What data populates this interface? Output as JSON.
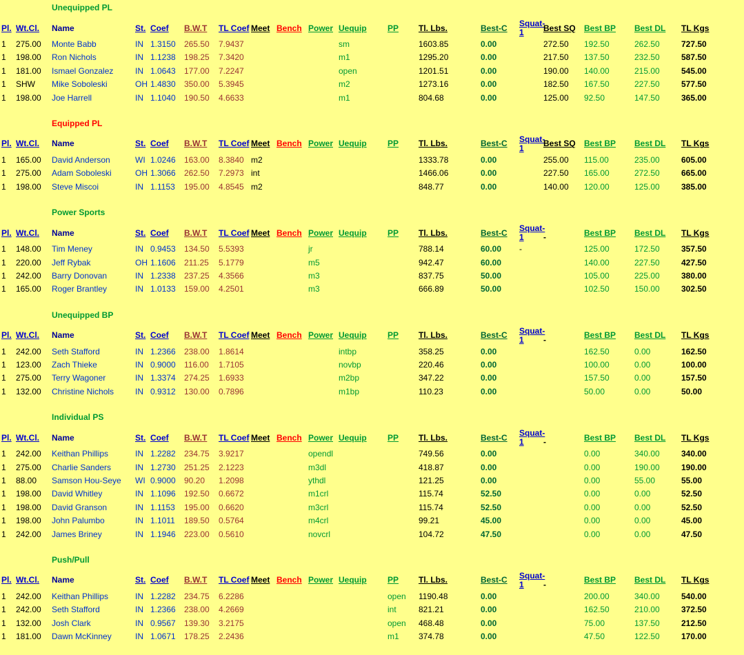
{
  "page": {
    "background": "#FFFF8C",
    "colors": {
      "link_blue": "#0000CC",
      "name_navy": "#000099",
      "maroon": "#993333",
      "red": "#FF0000",
      "green": "#009933",
      "dark_green": "#006633",
      "black": "#000000"
    }
  },
  "columns": [
    {
      "key": "pl",
      "label": "Pl.",
      "sortable": true
    },
    {
      "key": "wtcl",
      "label": "Wt.Cl.",
      "sortable": true
    },
    {
      "key": "name",
      "label": "Name",
      "sortable": false
    },
    {
      "key": "st",
      "label": "St.",
      "sortable": true
    },
    {
      "key": "coef",
      "label": "Coef",
      "sortable": true
    },
    {
      "key": "bwt",
      "label": "B.W.T",
      "sortable": true
    },
    {
      "key": "tlcoef",
      "label": "TL Coef",
      "sortable": true
    },
    {
      "key": "meet",
      "label": "Meet",
      "sortable": true
    },
    {
      "key": "bench",
      "label": "Bench",
      "sortable": true
    },
    {
      "key": "power",
      "label": "Power",
      "sortable": true
    },
    {
      "key": "uequip",
      "label": "Uequip",
      "sortable": true
    },
    {
      "key": "pp",
      "label": "PP",
      "sortable": true
    },
    {
      "key": "tllbs",
      "label": "Tl. Lbs.",
      "sortable": true
    },
    {
      "key": "bestc",
      "label": "Best-C",
      "sortable": true
    },
    {
      "key": "squat1",
      "label": "Squat-1",
      "sortable": true
    },
    {
      "key": "bestsq",
      "label": "Best SQ",
      "sortable": true
    },
    {
      "key": "bestbp",
      "label": "Best BP",
      "sortable": true
    },
    {
      "key": "bestdl",
      "label": "Best DL",
      "sortable": true
    },
    {
      "key": "tlkgs",
      "label": "TL Kgs",
      "sortable": true
    }
  ],
  "sections": [
    {
      "title": "Unequipped PL",
      "title_color": "#009933",
      "best_sq_header": "Best SQ",
      "rows": [
        [
          "1",
          "275.00",
          "Monte Babb",
          "IN",
          "1.3150",
          "265.50",
          "7.9437",
          "",
          "",
          "",
          "sm",
          "",
          "1603.85",
          "0.00",
          "",
          "272.50",
          "192.50",
          "262.50",
          "727.50"
        ],
        [
          "1",
          "198.00",
          "Ron Nichols",
          "IN",
          "1.1238",
          "198.25",
          "7.3420",
          "",
          "",
          "",
          "m1",
          "",
          "1295.20",
          "0.00",
          "",
          "217.50",
          "137.50",
          "232.50",
          "587.50"
        ],
        [
          "1",
          "181.00",
          "Ismael Gonzalez",
          "IN",
          "1.0643",
          "177.00",
          "7.2247",
          "",
          "",
          "",
          "open",
          "",
          "1201.51",
          "0.00",
          "",
          "190.00",
          "140.00",
          "215.00",
          "545.00"
        ],
        [
          "1",
          "SHW",
          "Mike Soboleski",
          "OH",
          "1.4830",
          "350.00",
          "5.3945",
          "",
          "",
          "",
          "m2",
          "",
          "1273.16",
          "0.00",
          "",
          "182.50",
          "167.50",
          "227.50",
          "577.50"
        ],
        [
          "1",
          "198.00",
          "Joe Harrell",
          "IN",
          "1.1040",
          "190.50",
          "4.6633",
          "",
          "",
          "",
          "m1",
          "",
          "804.68",
          "0.00",
          "",
          "125.00",
          "92.50",
          "147.50",
          "365.00"
        ]
      ]
    },
    {
      "title": "Equipped PL",
      "title_color": "#FF0000",
      "best_sq_header": "Best SQ",
      "rows": [
        [
          "1",
          "165.00",
          "David Anderson",
          "WI",
          "1.0246",
          "163.00",
          "8.3840",
          "m2",
          "",
          "",
          "",
          "",
          "1333.78",
          "0.00",
          "",
          "255.00",
          "115.00",
          "235.00",
          "605.00"
        ],
        [
          "1",
          "275.00",
          "Adam Soboleski",
          "OH",
          "1.3066",
          "262.50",
          "7.2973",
          "int",
          "",
          "",
          "",
          "",
          "1466.06",
          "0.00",
          "",
          "227.50",
          "165.00",
          "272.50",
          "665.00"
        ],
        [
          "1",
          "198.00",
          "Steve Miscoi",
          "IN",
          "1.1153",
          "195.00",
          "4.8545",
          "m2",
          "",
          "",
          "",
          "",
          "848.77",
          "0.00",
          "",
          "140.00",
          "120.00",
          "125.00",
          "385.00"
        ]
      ]
    },
    {
      "title": "Power Sports",
      "title_color": "#009933",
      "best_sq_header": "-",
      "rows": [
        [
          "1",
          "148.00",
          "Tim Meney",
          "IN",
          "0.9453",
          "134.50",
          "5.5393",
          "",
          "",
          "jr",
          "",
          "",
          "788.14",
          "60.00",
          "-",
          "",
          "125.00",
          "172.50",
          "357.50"
        ],
        [
          "1",
          "220.00",
          "Jeff Rybak",
          "OH",
          "1.1606",
          "211.25",
          "5.1779",
          "",
          "",
          "m5",
          "",
          "",
          "942.47",
          "60.00",
          "",
          "",
          "140.00",
          "227.50",
          "427.50"
        ],
        [
          "1",
          "242.00",
          "Barry Donovan",
          "IN",
          "1.2338",
          "237.25",
          "4.3566",
          "",
          "",
          "m3",
          "",
          "",
          "837.75",
          "50.00",
          "",
          "",
          "105.00",
          "225.00",
          "380.00"
        ],
        [
          "1",
          "165.00",
          "Roger Brantley",
          "IN",
          "1.0133",
          "159.00",
          "4.2501",
          "",
          "",
          "m3",
          "",
          "",
          "666.89",
          "50.00",
          "",
          "",
          "102.50",
          "150.00",
          "302.50"
        ]
      ]
    },
    {
      "title": "Unequipped BP",
      "title_color": "#009933",
      "best_sq_header": "-",
      "rows": [
        [
          "1",
          "242.00",
          "Seth Stafford",
          "IN",
          "1.2366",
          "238.00",
          "1.8614",
          "",
          "",
          "",
          "intbp",
          "",
          "358.25",
          "0.00",
          "",
          "",
          "162.50",
          "0.00",
          "162.50"
        ],
        [
          "1",
          "123.00",
          "Zach Thieke",
          "IN",
          "0.9000",
          "116.00",
          "1.7105",
          "",
          "",
          "",
          "novbp",
          "",
          "220.46",
          "0.00",
          "",
          "",
          "100.00",
          "0.00",
          "100.00"
        ],
        [
          "1",
          "275.00",
          "Terry Wagoner",
          "IN",
          "1.3374",
          "274.25",
          "1.6933",
          "",
          "",
          "",
          "m2bp",
          "",
          "347.22",
          "0.00",
          "",
          "",
          "157.50",
          "0.00",
          "157.50"
        ],
        [
          "1",
          "132.00",
          "Christine Nichols",
          "IN",
          "0.9312",
          "130.00",
          "0.7896",
          "",
          "",
          "",
          "m1bp",
          "",
          "110.23",
          "0.00",
          "",
          "",
          "50.00",
          "0.00",
          "50.00"
        ]
      ]
    },
    {
      "title": "Individual PS",
      "title_color": "#009933",
      "best_sq_header": "-",
      "rows": [
        [
          "1",
          "242.00",
          "Keithan Phillips",
          "IN",
          "1.2282",
          "234.75",
          "3.9217",
          "",
          "",
          "opendl",
          "",
          "",
          "749.56",
          "0.00",
          "",
          "",
          "0.00",
          "340.00",
          "340.00"
        ],
        [
          "1",
          "275.00",
          "Charlie Sanders",
          "IN",
          "1.2730",
          "251.25",
          "2.1223",
          "",
          "",
          "m3dl",
          "",
          "",
          "418.87",
          "0.00",
          "",
          "",
          "0.00",
          "190.00",
          "190.00"
        ],
        [
          "1",
          "88.00",
          "Samson Hou-Seye",
          "WI",
          "0.9000",
          "90.20",
          "1.2098",
          "",
          "",
          "ythdl",
          "",
          "",
          "121.25",
          "0.00",
          "",
          "",
          "0.00",
          "55.00",
          "55.00"
        ],
        [
          "1",
          "198.00",
          "David Whitley",
          "IN",
          "1.1096",
          "192.50",
          "0.6672",
          "",
          "",
          "m1crl",
          "",
          "",
          "115.74",
          "52.50",
          "",
          "",
          "0.00",
          "0.00",
          "52.50"
        ],
        [
          "1",
          "198.00",
          "David Granson",
          "IN",
          "1.1153",
          "195.00",
          "0.6620",
          "",
          "",
          "m3crl",
          "",
          "",
          "115.74",
          "52.50",
          "",
          "",
          "0.00",
          "0.00",
          "52.50"
        ],
        [
          "1",
          "198.00",
          "John Palumbo",
          "IN",
          "1.1011",
          "189.50",
          "0.5764",
          "",
          "",
          "m4crl",
          "",
          "",
          "99.21",
          "45.00",
          "",
          "",
          "0.00",
          "0.00",
          "45.00"
        ],
        [
          "1",
          "242.00",
          "James Briney",
          "IN",
          "1.1946",
          "223.00",
          "0.5610",
          "",
          "",
          "novcrl",
          "",
          "",
          "104.72",
          "47.50",
          "",
          "",
          "0.00",
          "0.00",
          "47.50"
        ]
      ]
    },
    {
      "title": "Push/Pull",
      "title_color": "#009933",
      "best_sq_header": "-",
      "rows": [
        [
          "1",
          "242.00",
          "Keithan Phillips",
          "IN",
          "1.2282",
          "234.75",
          "6.2286",
          "",
          "",
          "",
          "",
          "open",
          "1190.48",
          "0.00",
          "",
          "",
          "200.00",
          "340.00",
          "540.00"
        ],
        [
          "1",
          "242.00",
          "Seth Stafford",
          "IN",
          "1.2366",
          "238.00",
          "4.2669",
          "",
          "",
          "",
          "",
          "int",
          "821.21",
          "0.00",
          "",
          "",
          "162.50",
          "210.00",
          "372.50"
        ],
        [
          "1",
          "132.00",
          "Josh Clark",
          "IN",
          "0.9567",
          "139.30",
          "3.2175",
          "",
          "",
          "",
          "",
          "open",
          "468.48",
          "0.00",
          "",
          "",
          "75.00",
          "137.50",
          "212.50"
        ],
        [
          "1",
          "181.00",
          "Dawn McKinney",
          "IN",
          "1.0671",
          "178.25",
          "2.2436",
          "",
          "",
          "",
          "",
          "m1",
          "374.78",
          "0.00",
          "",
          "",
          "47.50",
          "122.50",
          "170.00"
        ]
      ]
    }
  ]
}
